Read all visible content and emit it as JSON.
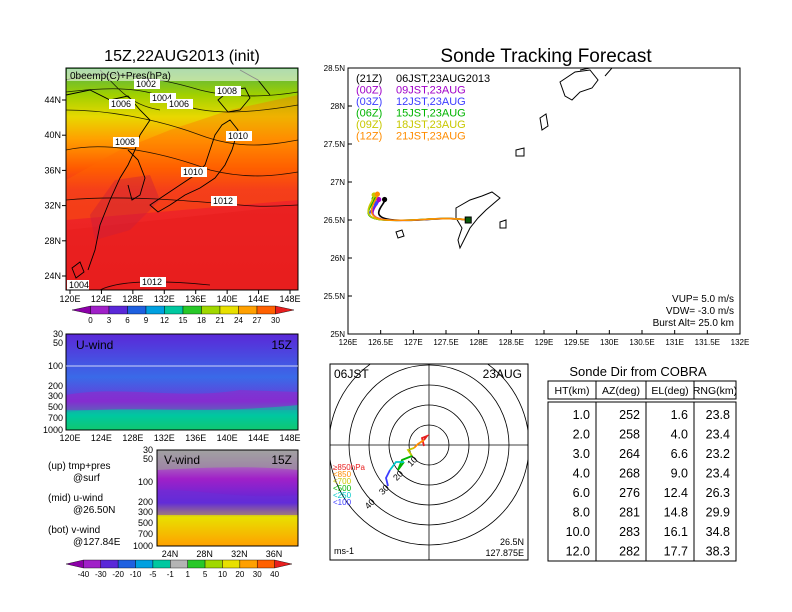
{
  "map_panel": {
    "title": "15Z,22AUG2013 (init)",
    "label": "0beemp(C)+Pres(hPa)",
    "isobar_labels": [
      "1002",
      "1004",
      "1006",
      "1006",
      "1008",
      "1008",
      "1010",
      "1010",
      "1012",
      "1012",
      "1004"
    ],
    "x_ticks": [
      "120E",
      "124E",
      "128E",
      "132E",
      "136E",
      "140E",
      "144E",
      "148E"
    ],
    "y_ticks": [
      "44N",
      "40N",
      "36N",
      "32N",
      "28N",
      "24N"
    ],
    "colorbar_ticks": [
      "0",
      "3",
      "6",
      "9",
      "12",
      "15",
      "18",
      "21",
      "24",
      "27",
      "30"
    ],
    "colorbar_colors": [
      "#8c00a8",
      "#a020c8",
      "#5a28d8",
      "#1e60e0",
      "#00a0e0",
      "#00c8a0",
      "#28c828",
      "#a0d800",
      "#e8e000",
      "#ffa000",
      "#ff6000",
      "#e81e1e"
    ]
  },
  "uwind_panel": {
    "label": "U-wind",
    "time": "15Z",
    "y_ticks": [
      "30",
      "50",
      "100",
      "200",
      "300",
      "500",
      "700",
      "1000"
    ],
    "x_ticks": [
      "120E",
      "124E",
      "128E",
      "132E",
      "136E",
      "140E",
      "144E",
      "148E"
    ]
  },
  "vwind_panel": {
    "label": "V-wind",
    "time": "15Z",
    "y_ticks": [
      "30",
      "50",
      "100",
      "200",
      "300",
      "500",
      "700",
      "1000"
    ],
    "x_ticks": [
      "24N",
      "28N",
      "32N",
      "36N"
    ]
  },
  "notes": {
    "up": "(up) tmp+pres",
    "up_sub": "@surf",
    "mid": "(mid) u-wind",
    "mid_sub": "@26.50N",
    "bot": "(bot) v-wind",
    "bot_sub": "@127.84E"
  },
  "wind_colorbar": {
    "ticks": [
      "-40",
      "-30",
      "-20",
      "-10",
      "-5",
      "-1",
      "1",
      "5",
      "10",
      "20",
      "30",
      "40"
    ],
    "colors": [
      "#8c00a8",
      "#a020c8",
      "#5a28d8",
      "#1e60e0",
      "#00a0e0",
      "#00c8a0",
      "#b4b4b4",
      "#28c828",
      "#a0d800",
      "#e8e000",
      "#ffa000",
      "#ff6000",
      "#e81e1e"
    ]
  },
  "tracking": {
    "title": "Sonde Tracking Forecast",
    "legend": [
      {
        "time": "(21Z)",
        "label": "06JST,23AUG2013",
        "color": "#000000"
      },
      {
        "time": "(00Z)",
        "label": "09JST,23AUG",
        "color": "#a000c8"
      },
      {
        "time": "(03Z)",
        "label": "12JST,23AUG",
        "color": "#3c3cff"
      },
      {
        "time": "(06Z)",
        "label": "15JST,23AUG",
        "color": "#00b400"
      },
      {
        "time": "(09Z)",
        "label": "18JST,23AUG",
        "color": "#c8c800"
      },
      {
        "time": "(12Z)",
        "label": "21JST,23AUG",
        "color": "#ff8c00"
      }
    ],
    "x_ticks": [
      "126E",
      "126.5E",
      "127E",
      "127.5E",
      "128E",
      "128.5E",
      "129E",
      "129.5E",
      "130E",
      "130.5E",
      "131E",
      "131.5E",
      "132E"
    ],
    "y_ticks": [
      "28.5N",
      "28N",
      "27.5N",
      "27N",
      "26.5N",
      "26N",
      "25.5N",
      "25N"
    ],
    "xlim": [
      126,
      132
    ],
    "ylim": [
      25,
      28.5
    ],
    "launch": [
      127.84,
      26.5
    ],
    "tracks_endpoints": [
      {
        "name": "21Z",
        "lon": 126.56,
        "lat": 26.77
      },
      {
        "name": "00Z",
        "lon": 126.47,
        "lat": 26.77
      },
      {
        "name": "03Z",
        "lon": 126.42,
        "lat": 26.72
      },
      {
        "name": "06Z",
        "lon": 126.4,
        "lat": 26.78
      },
      {
        "name": "09Z",
        "lon": 126.4,
        "lat": 26.83
      },
      {
        "name": "12Z",
        "lon": 126.45,
        "lat": 26.84
      }
    ],
    "info": [
      "VUP=  5.0 m/s",
      "VDW= -3.0 m/s",
      "Burst Alt= 25.0 km"
    ]
  },
  "hodograph": {
    "time": "06JST",
    "date": "23AUG",
    "ring_labels": [
      "10",
      "20",
      "30",
      "40"
    ],
    "unit": "ms-1",
    "location_lat": "26.5N",
    "location_lon": "127.875E",
    "legend": [
      {
        "label": "≥850hPa",
        "color": "#e81e1e"
      },
      {
        "label": "<850",
        "color": "#ff8c00"
      },
      {
        "label": "<700",
        "color": "#c8c800"
      },
      {
        "label": "<500",
        "color": "#00b400"
      },
      {
        "label": "<250",
        "color": "#00c8c8"
      },
      {
        "label": "<100",
        "color": "#3c3cff"
      }
    ]
  },
  "sonde_table": {
    "title": "Sonde Dir from COBRA",
    "headers": [
      "HT(km)",
      "AZ(deg)",
      "EL(deg)",
      "RNG(km)"
    ],
    "rows": [
      [
        "1.0",
        "252",
        "1.6",
        "23.8"
      ],
      [
        "2.0",
        "258",
        "4.0",
        "23.4"
      ],
      [
        "3.0",
        "264",
        "6.6",
        "23.2"
      ],
      [
        "4.0",
        "268",
        "9.0",
        "23.4"
      ],
      [
        "6.0",
        "276",
        "12.4",
        "26.3"
      ],
      [
        "8.0",
        "281",
        "14.8",
        "29.9"
      ],
      [
        "10.0",
        "283",
        "16.1",
        "34.8"
      ],
      [
        "12.0",
        "282",
        "17.7",
        "38.3"
      ]
    ]
  }
}
